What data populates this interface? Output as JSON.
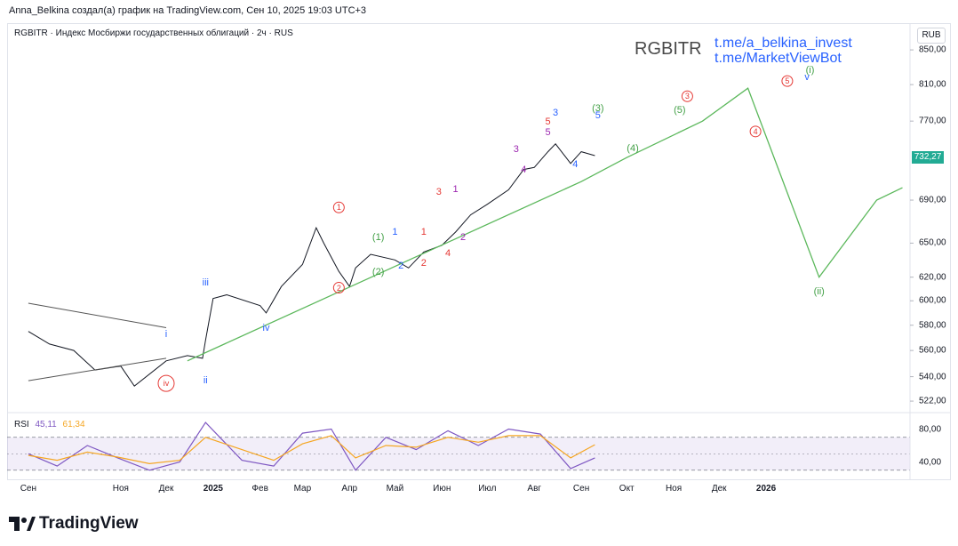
{
  "header_text": "Anna_Belkina создал(а) график на TradingView.com, Сен 10, 2025 19:03 UTC+3",
  "symbol_line": "RGBITR · Индекс Мосбиржи государственных облигаций · 2ч · RUS",
  "big_symbol": "RGBITR",
  "links": [
    "t.me/a_belkina_invest",
    "t.me/MarketViewBot"
  ],
  "currency": "RUB",
  "current_price": "732,27",
  "footer_brand": "TradingView",
  "colors": {
    "forecast": "#5cb85c",
    "price": "#131722",
    "rsi": "#7e57c2",
    "rsi_ma": "#f5a623",
    "tag": "#22ab94",
    "link": "#2962ff"
  },
  "chart_data": [
    {
      "type": "line",
      "title": "RGBITR · Индекс Мосбиржи государственных облигаций · 2ч · RUS",
      "x_ticks": [
        "Сен",
        "Ноя",
        "Дек",
        "2025",
        "Фев",
        "Мар",
        "Апр",
        "Май",
        "Июн",
        "Июл",
        "Авг",
        "Сен",
        "Окт",
        "Ноя",
        "Дек",
        "2026"
      ],
      "y_ticks": [
        "850,00",
        "810,00",
        "770,00",
        "732,27",
        "690,00",
        "650,00",
        "620,00",
        "600,00",
        "580,00",
        "560,00",
        "540,00",
        "522,00"
      ],
      "ylim": [
        515,
        880
      ],
      "y_scale": "log",
      "series": [
        {
          "name": "RGBITR price (approx.)",
          "x": [
            "2024-09-01",
            "2024-09-15",
            "2024-10-01",
            "2024-10-15",
            "2024-11-01",
            "2024-11-10",
            "2024-12-01",
            "2024-12-15",
            "2024-12-25",
            "2024-12-27",
            "2025-01-01",
            "2025-01-10",
            "2025-02-01",
            "2025-02-05",
            "2025-02-15",
            "2025-03-01",
            "2025-03-10",
            "2025-03-15",
            "2025-03-25",
            "2025-04-01",
            "2025-04-05",
            "2025-04-15",
            "2025-05-01",
            "2025-05-10",
            "2025-05-20",
            "2025-06-01",
            "2025-06-10",
            "2025-06-20",
            "2025-07-01",
            "2025-07-15",
            "2025-07-25",
            "2025-08-01",
            "2025-08-10",
            "2025-08-15",
            "2025-08-25",
            "2025-09-01",
            "2025-09-10"
          ],
          "values": [
            575,
            565,
            560,
            545,
            548,
            533,
            552,
            556,
            554,
            568,
            602,
            605,
            596,
            590,
            612,
            631,
            664,
            650,
            625,
            612,
            628,
            640,
            635,
            628,
            642,
            648,
            660,
            676,
            686,
            700,
            720,
            722,
            738,
            746,
            726,
            738,
            734
          ]
        },
        {
          "name": "Wave forecast",
          "x": [
            "2024-12-15",
            "2025-09-01",
            "2025-10-01",
            "2025-11-20",
            "2025-12-20",
            "2026-02-05",
            "2026-03-15",
            "2026-04-01"
          ],
          "values": [
            552,
            708,
            732,
            770,
            806,
            620,
            690,
            702
          ]
        },
        {
          "name": "Triangle upper line",
          "x": [
            "2024-09-01",
            "2024-12-01"
          ],
          "values": [
            598,
            578
          ]
        },
        {
          "name": "Triangle lower line",
          "x": [
            "2024-09-01",
            "2024-12-01"
          ],
          "values": [
            537,
            554
          ]
        }
      ],
      "annotations": [
        {
          "text": "i",
          "x": "2024-12-01",
          "y": 573,
          "color": "#2962ff"
        },
        {
          "text": "ii",
          "x": "2024-12-27",
          "y": 537,
          "color": "#2962ff"
        },
        {
          "text": "iii",
          "x": "2024-12-27",
          "y": 615,
          "color": "#2962ff"
        },
        {
          "text": "iv",
          "x": "2025-02-05",
          "y": 578,
          "color": "#2962ff"
        },
        {
          "text": "iv",
          "x": "2024-12-01",
          "y": 535,
          "color": "#e53935",
          "circled": true
        },
        {
          "text": "1",
          "x": "2025-03-25",
          "y": 683,
          "color": "#e53935",
          "circled": true
        },
        {
          "text": "2",
          "x": "2025-03-25",
          "y": 611,
          "color": "#e53935",
          "circled": true
        },
        {
          "text": "(1)",
          "x": "2025-04-20",
          "y": 655,
          "color": "#43a047"
        },
        {
          "text": "(2)",
          "x": "2025-04-20",
          "y": 624,
          "color": "#43a047"
        },
        {
          "text": "1",
          "x": "2025-05-01",
          "y": 660,
          "color": "#2962ff"
        },
        {
          "text": "2",
          "x": "2025-05-05",
          "y": 630,
          "color": "#2962ff"
        },
        {
          "text": "1",
          "x": "2025-05-20",
          "y": 660,
          "color": "#e53935"
        },
        {
          "text": "2",
          "x": "2025-05-20",
          "y": 632,
          "color": "#e53935"
        },
        {
          "text": "3",
          "x": "2025-05-30",
          "y": 698,
          "color": "#e53935"
        },
        {
          "text": "4",
          "x": "2025-06-05",
          "y": 641,
          "color": "#e53935"
        },
        {
          "text": "1",
          "x": "2025-06-10",
          "y": 700,
          "color": "#9c27b0"
        },
        {
          "text": "2",
          "x": "2025-06-15",
          "y": 655,
          "color": "#9c27b0"
        },
        {
          "text": "3",
          "x": "2025-07-20",
          "y": 740,
          "color": "#9c27b0"
        },
        {
          "text": "4",
          "x": "2025-07-25",
          "y": 720,
          "color": "#9c27b0"
        },
        {
          "text": "5",
          "x": "2025-08-10",
          "y": 758,
          "color": "#9c27b0"
        },
        {
          "text": "5",
          "x": "2025-08-10",
          "y": 769,
          "color": "#e53935"
        },
        {
          "text": "3",
          "x": "2025-08-15",
          "y": 779,
          "color": "#2962ff"
        },
        {
          "text": "4",
          "x": "2025-08-28",
          "y": 725,
          "color": "#2962ff"
        },
        {
          "text": "5",
          "x": "2025-09-12",
          "y": 776,
          "color": "#2962ff"
        },
        {
          "text": "(3)",
          "x": "2025-09-12",
          "y": 784,
          "color": "#43a047"
        },
        {
          "text": "(4)",
          "x": "2025-10-05",
          "y": 741,
          "color": "#43a047"
        },
        {
          "text": "(5)",
          "x": "2025-11-05",
          "y": 782,
          "color": "#43a047"
        },
        {
          "text": "3",
          "x": "2025-11-10",
          "y": 797,
          "color": "#e53935",
          "circled": true
        },
        {
          "text": "4",
          "x": "2025-12-25",
          "y": 759,
          "color": "#e53935",
          "circled": true
        },
        {
          "text": "5",
          "x": "2026-01-15",
          "y": 814,
          "color": "#e53935",
          "circled": true
        },
        {
          "text": "(i)",
          "x": "2026-01-30",
          "y": 826,
          "color": "#43a047"
        },
        {
          "text": "v",
          "x": "2026-01-28",
          "y": 818,
          "color": "#2962ff"
        },
        {
          "text": "(ii)",
          "x": "2026-02-05",
          "y": 608,
          "color": "#43a047"
        }
      ]
    },
    {
      "type": "line",
      "title": "RSI",
      "legend": [
        "RSI",
        "45,11",
        "61,34"
      ],
      "y_ticks": [
        "80,00",
        "40,00"
      ],
      "ylim": [
        20,
        100
      ],
      "bands": [
        30,
        70
      ],
      "series": [
        {
          "name": "RSI",
          "x": [
            "2024-09-01",
            "2024-09-20",
            "2024-10-10",
            "2024-10-30",
            "2024-11-20",
            "2024-12-10",
            "2024-12-27",
            "2025-01-20",
            "2025-02-10",
            "2025-03-01",
            "2025-03-20",
            "2025-04-05",
            "2025-04-25",
            "2025-05-15",
            "2025-06-05",
            "2025-06-25",
            "2025-07-15",
            "2025-08-05",
            "2025-08-25",
            "2025-09-10"
          ],
          "values": [
            50,
            35,
            60,
            45,
            30,
            40,
            88,
            42,
            35,
            75,
            80,
            30,
            70,
            55,
            78,
            60,
            80,
            74,
            32,
            45
          ]
        },
        {
          "name": "RSI MA",
          "x": [
            "2024-09-01",
            "2024-09-20",
            "2024-10-10",
            "2024-10-30",
            "2024-11-20",
            "2024-12-10",
            "2024-12-27",
            "2025-01-20",
            "2025-02-10",
            "2025-03-01",
            "2025-03-20",
            "2025-04-05",
            "2025-04-25",
            "2025-05-15",
            "2025-06-05",
            "2025-06-25",
            "2025-07-15",
            "2025-08-05",
            "2025-08-25",
            "2025-09-10"
          ],
          "values": [
            48,
            42,
            52,
            46,
            38,
            42,
            70,
            55,
            42,
            62,
            72,
            45,
            60,
            58,
            70,
            64,
            72,
            72,
            45,
            61
          ]
        }
      ]
    }
  ]
}
